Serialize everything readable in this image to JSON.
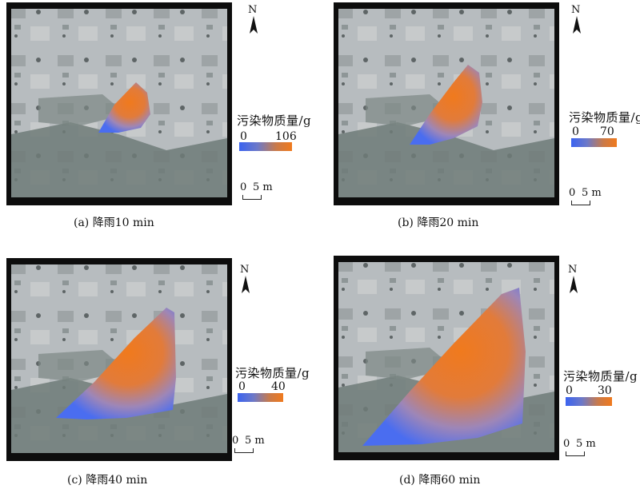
{
  "panels": [
    {
      "id": "a",
      "caption": "(a) 降雨10 min",
      "legend_title": "污染物质量/g",
      "legend_min": "0",
      "legend_max": "106",
      "north": "N",
      "scale_zero": "0",
      "scale_label": "5 m"
    },
    {
      "id": "b",
      "caption": "(b) 降雨20 min",
      "legend_title": "污染物质量/g",
      "legend_min": "0",
      "legend_max": "70",
      "north": "N",
      "scale_zero": "0",
      "scale_label": "5 m"
    },
    {
      "id": "c",
      "caption": "(c) 降雨40 min",
      "legend_title": "污染物质量/g",
      "legend_min": "0",
      "legend_max": "40",
      "north": "N",
      "scale_zero": "0",
      "scale_label": "5 m"
    },
    {
      "id": "d",
      "caption": "(d) 降雨60 min",
      "legend_title": "污染物质量/g",
      "legend_min": "0",
      "legend_max": "30",
      "north": "N",
      "scale_zero": "0",
      "scale_label": "5 m"
    }
  ],
  "colors": {
    "low": "#3b63f0",
    "high": "#f07a1d",
    "frame": "#0d0d0d",
    "terrain_light": "#b9bec0",
    "terrain_dark": "#6f7b78"
  },
  "icons": {
    "north": "north-arrow-icon"
  }
}
